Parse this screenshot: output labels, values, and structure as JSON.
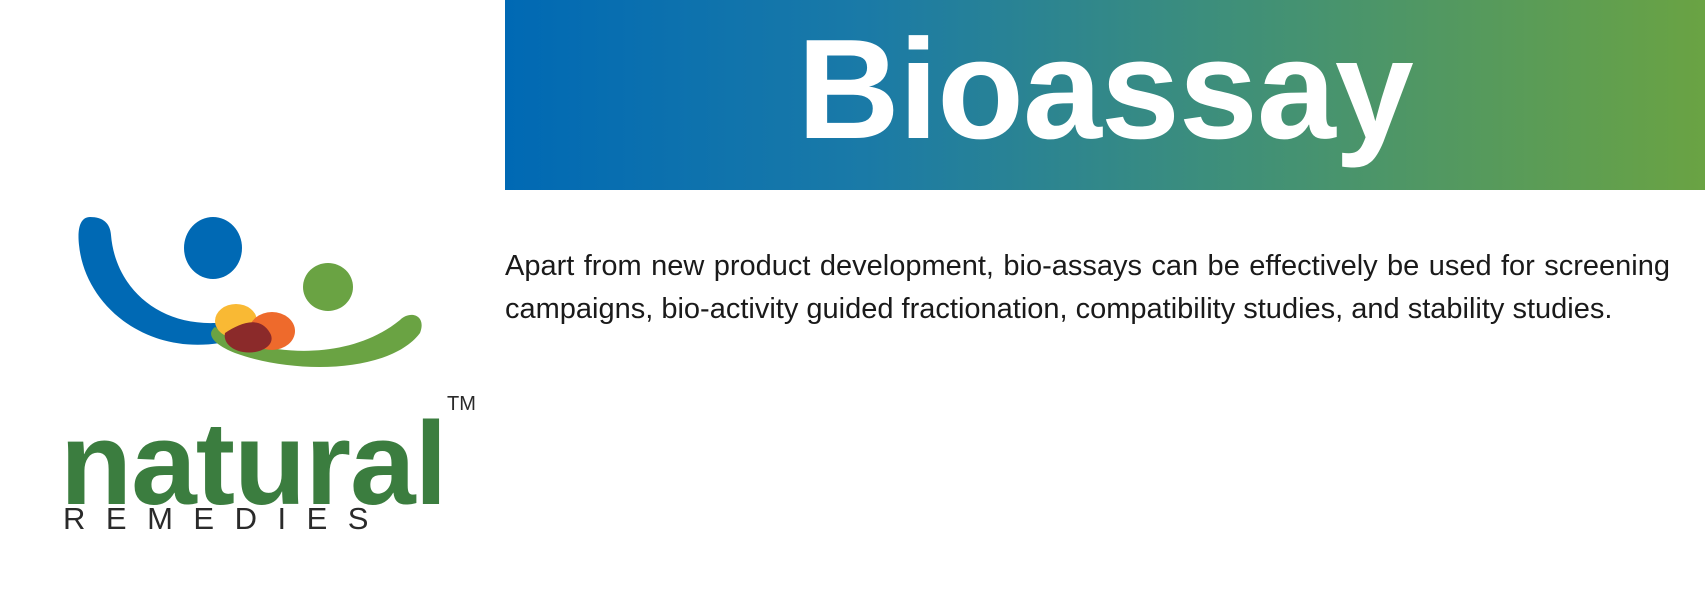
{
  "banner": {
    "title": "Bioassay",
    "gradient_start": "#0069b4",
    "gradient_end": "#6aa343"
  },
  "logo": {
    "wordmark": "natural",
    "subtitle": "REMEDIES",
    "trademark": "TM",
    "icon": "natural-remedies-logo-icon",
    "colors": {
      "blue": "#0069b4",
      "green": "#6aa343",
      "wordmark_green": "#3b7d3f",
      "yellow": "#f9b934",
      "orange": "#ee6a2c",
      "maroon": "#8b2a2a"
    }
  },
  "content": {
    "description": "Apart from new product development, bio-assays can be effectively be used for screening campaigns, bio-activity guided fractionation, compatibility studies, and stability studies."
  }
}
